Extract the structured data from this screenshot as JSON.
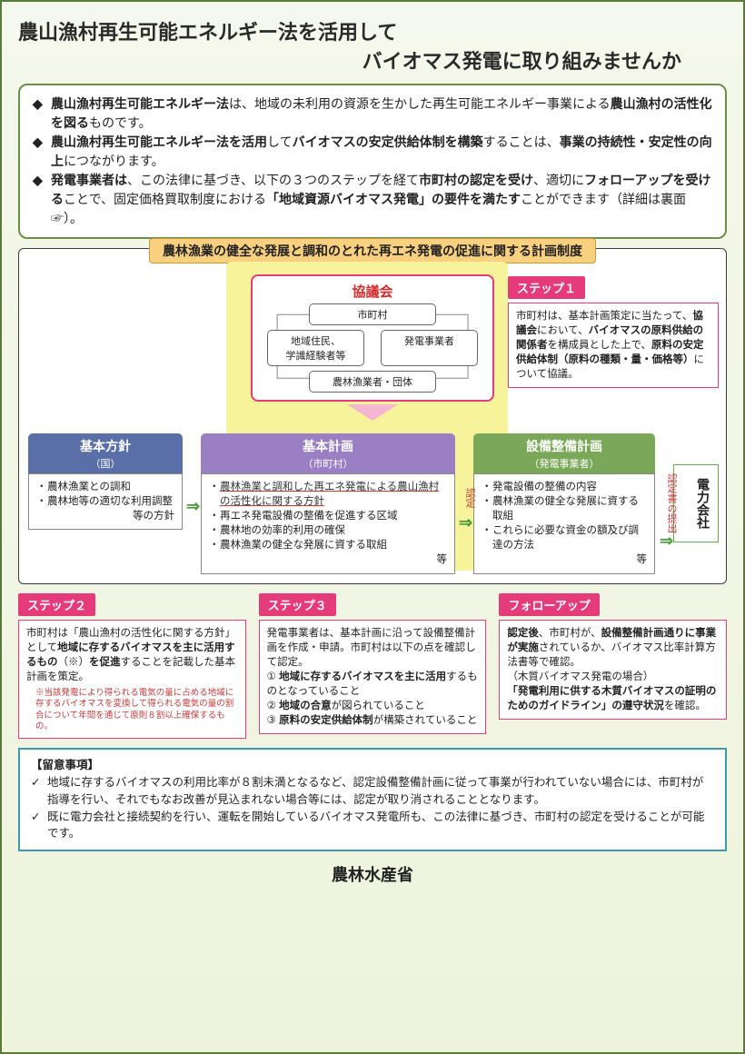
{
  "title": {
    "line1": "農山漁村再生可能エネルギー法を活用して",
    "line2": "バイオマス発電に取り組みませんか"
  },
  "summary": {
    "items": [
      {
        "html": "<span class='b'>農山漁村再生可能エネルギー法</span>は、地域の未利用の資源を生かした再生可能エネルギー事業による<span class='b'>農山漁村の活性化を図る</span>ものです。"
      },
      {
        "html": "<span class='b'>農山漁村再生可能エネルギー法を活用</span>して<span class='b'>バイオマスの安定供給体制を構築</span>することは、<span class='b'>事業の持続性・安定性の向上</span>につながります。"
      },
      {
        "html": "<span class='b'>発電事業者は</span>、この法律に基づき、以下の３つのステップを経て<span class='b'>市町村の認定を受け</span>、適切に<span class='b'>フォローアップを受ける</span>ことで、固定価格買取制度における<span class='b'>「地域資源バイオマス発電」の要件を満たす</span>ことができます（詳細は裏面☞）。"
      }
    ]
  },
  "system": {
    "frame_title": "農林漁業の健全な発展と調和のとれた再エネ発電の促進に関する計画制度",
    "council": {
      "label": "協議会",
      "nodes": {
        "top": "市町村",
        "left": "地域住民、\n学識経験者等",
        "right": "発電事業者",
        "bottom": "農林漁業者・団体"
      }
    },
    "basic_policy": {
      "header": "基本方針",
      "sub": "（国）",
      "items": [
        "農林漁業との調和",
        "農林地等の適切な利用調整"
      ],
      "tail": "等の方針"
    },
    "basic_plan": {
      "header": "基本計画",
      "sub": "（市町村）",
      "first_underline": "農林漁業と調和した再エネ発電による農山漁村の活性化に関する方針",
      "items": [
        "再エネ発電設備の整備を促進する区域",
        "農林地の効率的利用の確保",
        "農林漁業の健全な発展に資する取組"
      ],
      "tail": "等"
    },
    "facility_plan": {
      "header": "設備整備計画",
      "sub": "（発電事業者）",
      "items": [
        "発電設備の整備の内容",
        "農林漁業の健全な発展に資する取組",
        "これらに必要な資金の額及び調達の方法"
      ],
      "tail": "等"
    },
    "power_company": "電力会社",
    "nintei": "認定",
    "submit": "認定書の提出"
  },
  "step1": {
    "badge": "ステップ１",
    "html": "市町村は、基本計画策定に当たって、<span class='b'>協議会</span>において、<span class='b'>バイオマスの原料供給の関係者</span>を構成員とした上で、<span class='b'>原料の安定供給体制（原料の種類・量・価格等）</span>について協議。"
  },
  "step2": {
    "badge": "ステップ２",
    "html": "市町村は「農山漁村の活性化に関する方針」として<span class='b'>地域に存するバイオマスを主に活用するもの</span>（※）<span class='b'>を促進</span>することを記載した基本計画を策定。",
    "note": "※当該発電により得られる電気の量に占める地域に存するバイオマスを変換して得られる電気の量の割合について年間を通じて原則８割以上確保するもの。"
  },
  "step3": {
    "badge": "ステップ３",
    "html": "発電事業者は、基本計画に沿って設備整備計画を作成・申請。市町村は以下の点を確認して認定。<br>① <span class='b'>地域に存するバイオマスを主に活用</span>するものとなっていること<br>② <span class='b'>地域の合意</span>が図られていること<br>③ <span class='b'>原料の安定供給体制</span>が構築されていること"
  },
  "followup": {
    "badge": "フォローアップ",
    "html": "<span class='b'>認定後</span>、市町村が、<span class='b'>設備整備計画通りに事業が実施</span>されているか、バイオマス比率計算方法書等で確認。<br>（木質バイオマス発電の場合）<br><span class='b'>「発電利用に供する木質バイオマスの証明のためのガイドライン」の遵守状況</span>を確認。"
  },
  "caution": {
    "title": "【留意事項】",
    "items": [
      "地域に存するバイオマスの利用比率が８割未満となるなど、認定設備整備計画に従って事業が行われていない場合には、市町村が指導を行い、それでもなお改善が見込まれない場合等には、認定が取り消されることとなります。",
      "既に電力会社と接続契約を行い、運転を開始しているバイオマス発電所も、この法律に基づき、市町村の認定を受けることが可能です。"
    ]
  },
  "footer": "農林水産省",
  "colors": {
    "pink": "#e63b7a",
    "teal": "#3a9aa8",
    "green": "#69a84f",
    "yellow": "#f7f39a",
    "orange_badge": "#f9d080"
  }
}
